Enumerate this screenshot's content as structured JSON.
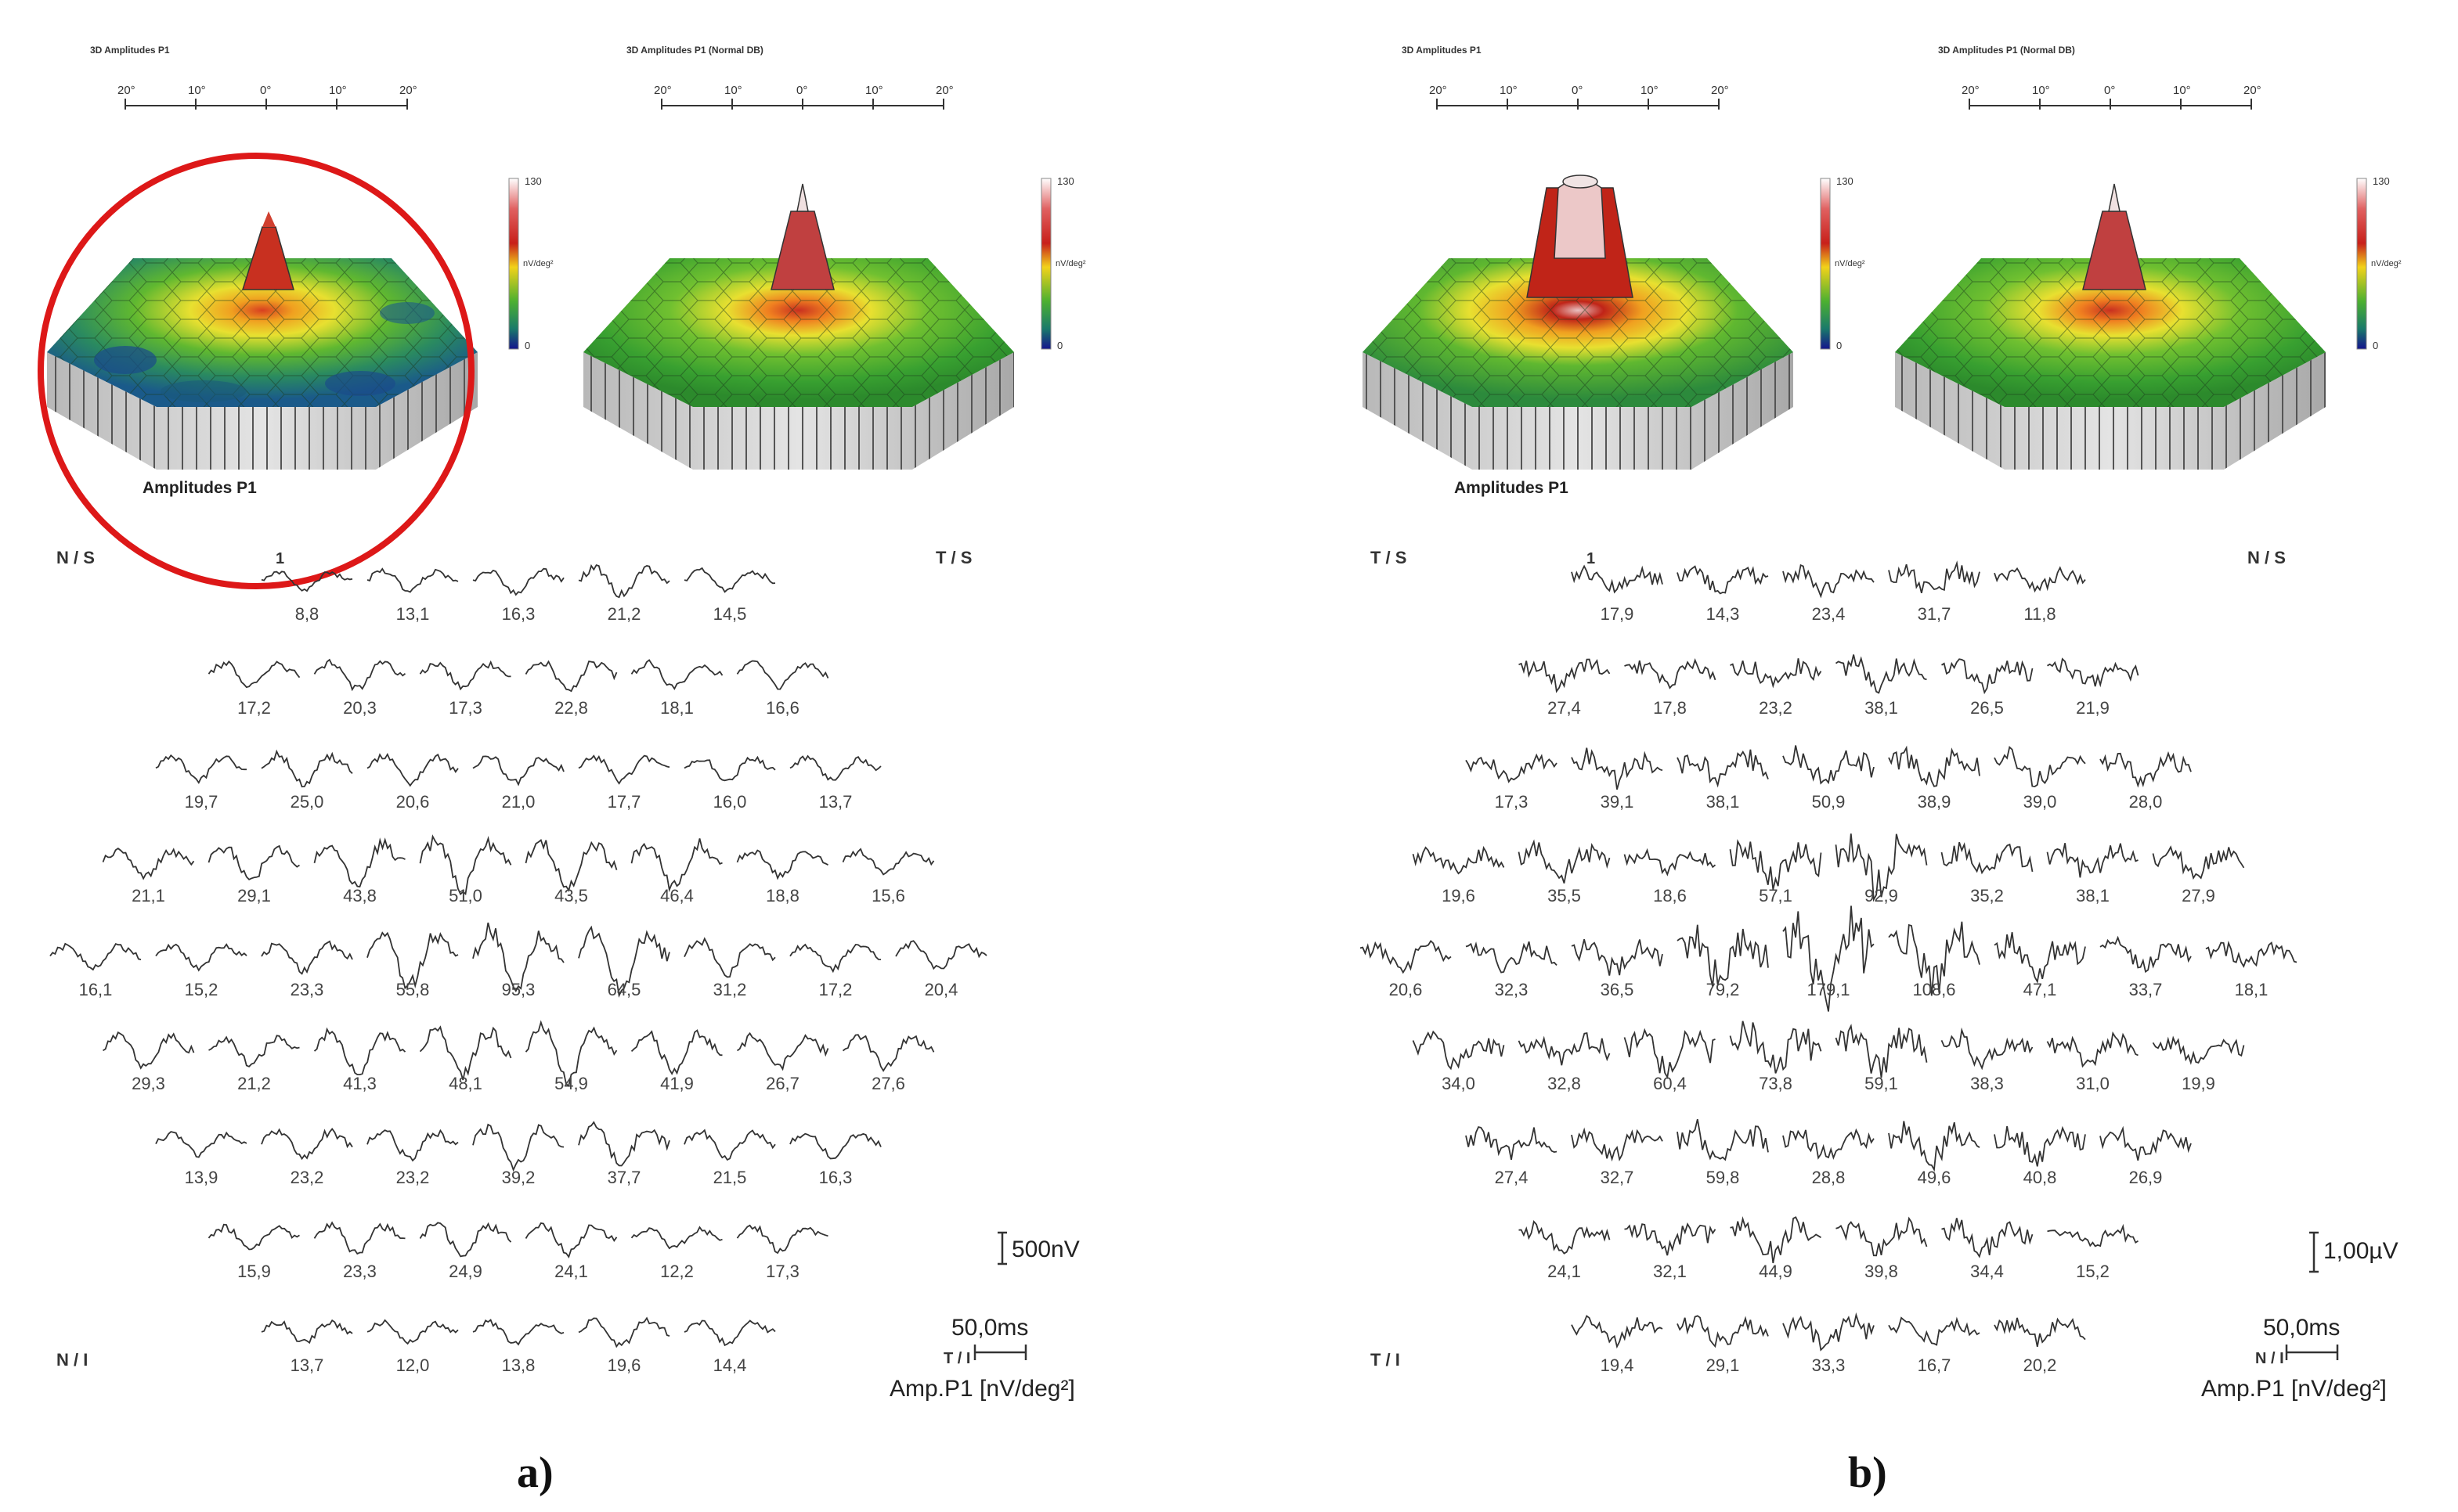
{
  "panels": [
    {
      "label": "a)",
      "plot_title_left": "3D Amplitudes P1",
      "plot_title_right": "3D Amplitudes P1 (Normal DB)",
      "axis_ticks": [
        "20°",
        "10°",
        "0°",
        "10°",
        "20°"
      ],
      "legend": {
        "max": "130",
        "unit": "nV/deg²",
        "min": "0"
      },
      "amp_label": "Amplitudes P1",
      "highlight_circle": true,
      "corners": {
        "tl": "N / S",
        "tr": "T / S",
        "bl": "N / I"
      },
      "first_marker": "1",
      "scale_amp": "500nV",
      "scale_time": "50,0ms",
      "scale_side": "T / I",
      "units": "Amp.P1 [nV/deg²]",
      "rows": [
        [
          "8,8",
          "13,1",
          "16,3",
          "21,2",
          "14,5"
        ],
        [
          "17,2",
          "20,3",
          "17,3",
          "22,8",
          "18,1",
          "16,6"
        ],
        [
          "19,7",
          "25,0",
          "20,6",
          "21,0",
          "17,7",
          "16,0",
          "13,7"
        ],
        [
          "21,1",
          "29,1",
          "43,8",
          "51,0",
          "43,5",
          "46,4",
          "18,8",
          "15,6"
        ],
        [
          "16,1",
          "15,2",
          "23,3",
          "55,8",
          "95,3",
          "64,5",
          "31,2",
          "17,2",
          "20,4"
        ],
        [
          "29,3",
          "21,2",
          "41,3",
          "48,1",
          "54,9",
          "41,9",
          "26,7",
          "27,6"
        ],
        [
          "13,9",
          "23,2",
          "23,2",
          "39,2",
          "37,7",
          "21,5",
          "16,3"
        ],
        [
          "15,9",
          "23,3",
          "24,9",
          "24,1",
          "12,2",
          "17,3"
        ],
        [
          "13,7",
          "12,0",
          "13,8",
          "19,6",
          "14,4"
        ]
      ]
    },
    {
      "label": "b)",
      "plot_title_left": "3D Amplitudes P1",
      "plot_title_right": "3D Amplitudes P1 (Normal DB)",
      "axis_ticks": [
        "20°",
        "10°",
        "0°",
        "10°",
        "20°"
      ],
      "legend": {
        "max": "130",
        "unit": "nV/deg²",
        "min": "0"
      },
      "amp_label": "Amplitudes P1",
      "highlight_circle": false,
      "corners": {
        "tl": "T / S",
        "tr": "N / S",
        "bl": "T / I"
      },
      "first_marker": "1",
      "scale_amp": "1,00µV",
      "scale_time": "50,0ms",
      "scale_side": "N / I",
      "units": "Amp.P1 [nV/deg²]",
      "rows": [
        [
          "17,9",
          "14,3",
          "23,4",
          "31,7",
          "11,8"
        ],
        [
          "27,4",
          "17,8",
          "23,2",
          "38,1",
          "26,5",
          "21,9"
        ],
        [
          "17,3",
          "39,1",
          "38,1",
          "50,9",
          "38,9",
          "39,0",
          "28,0"
        ],
        [
          "19,6",
          "35,5",
          "18,6",
          "57,1",
          "92,9",
          "35,2",
          "38,1",
          "27,9"
        ],
        [
          "20,6",
          "32,3",
          "36,5",
          "79,2",
          "179,1",
          "108,6",
          "47,1",
          "33,7",
          "18,1"
        ],
        [
          "34,0",
          "32,8",
          "60,4",
          "73,8",
          "59,1",
          "38,3",
          "31,0",
          "19,9"
        ],
        [
          "27,4",
          "32,7",
          "59,8",
          "28,8",
          "49,6",
          "40,8",
          "26,9"
        ],
        [
          "24,1",
          "32,1",
          "44,9",
          "39,8",
          "34,4",
          "15,2"
        ],
        [
          "19,4",
          "29,1",
          "33,3",
          "16,7",
          "20,2"
        ]
      ]
    }
  ],
  "chart_data": [
    {
      "type": "heatmap",
      "title": "Amplitudes P1",
      "unit": "nV/deg²",
      "rows": [
        [
          8.8,
          13.1,
          16.3,
          21.2,
          14.5
        ],
        [
          17.2,
          20.3,
          17.3,
          22.8,
          18.1,
          16.6
        ],
        [
          19.7,
          25.0,
          20.6,
          21.0,
          17.7,
          16.0,
          13.7
        ],
        [
          21.1,
          29.1,
          43.8,
          51.0,
          43.5,
          46.4,
          18.8,
          15.6
        ],
        [
          16.1,
          15.2,
          23.3,
          55.8,
          95.3,
          64.5,
          31.2,
          17.2,
          20.4
        ],
        [
          29.3,
          21.2,
          41.3,
          48.1,
          54.9,
          41.9,
          26.7,
          27.6
        ],
        [
          13.9,
          23.2,
          23.2,
          39.2,
          37.7,
          21.5,
          16.3
        ],
        [
          15.9,
          23.3,
          24.9,
          24.1,
          12.2,
          17.3
        ],
        [
          13.7,
          12.0,
          13.8,
          19.6,
          14.4
        ]
      ]
    },
    {
      "type": "heatmap",
      "title": "Amplitudes P1",
      "unit": "nV/deg²",
      "rows": [
        [
          17.9,
          14.3,
          23.4,
          31.7,
          11.8
        ],
        [
          27.4,
          17.8,
          23.2,
          38.1,
          26.5,
          21.9
        ],
        [
          17.3,
          39.1,
          38.1,
          50.9,
          38.9,
          39.0,
          28.0
        ],
        [
          19.6,
          35.5,
          18.6,
          57.1,
          92.9,
          35.2,
          38.1,
          27.9
        ],
        [
          20.6,
          32.3,
          36.5,
          79.2,
          179.1,
          108.6,
          47.1,
          33.7,
          18.1
        ],
        [
          34.0,
          32.8,
          60.4,
          73.8,
          59.1,
          38.3,
          31.0,
          19.9
        ],
        [
          27.4,
          32.7,
          59.8,
          28.8,
          49.6,
          40.8,
          26.9
        ],
        [
          24.1,
          32.1,
          44.9,
          39.8,
          34.4,
          15.2
        ],
        [
          19.4,
          29.1,
          33.3,
          16.7,
          20.2
        ]
      ]
    }
  ]
}
